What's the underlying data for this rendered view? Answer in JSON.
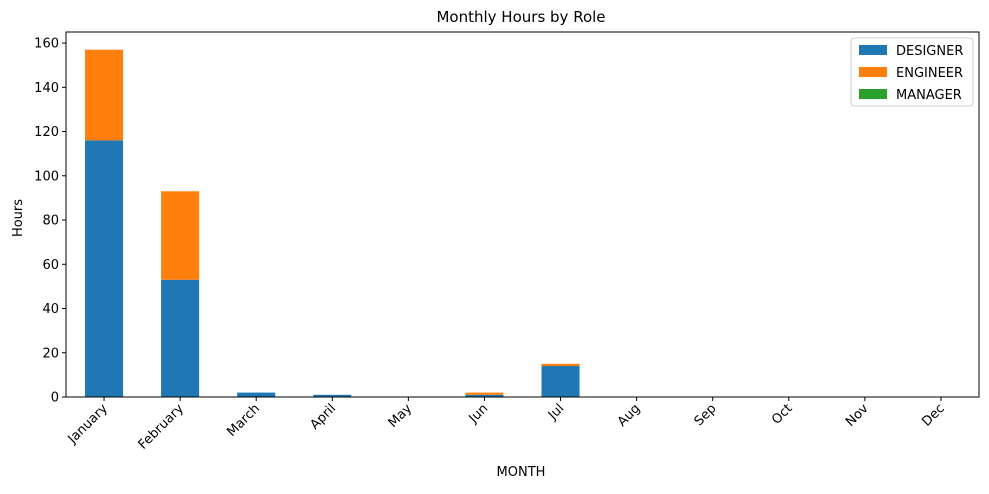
{
  "chart_data": {
    "type": "bar",
    "stacked": true,
    "title": "Monthly Hours by Role",
    "xlabel": "MONTH",
    "ylabel": "Hours",
    "ylim": [
      0,
      165
    ],
    "yticks": [
      0,
      20,
      40,
      60,
      80,
      100,
      120,
      140,
      160
    ],
    "categories": [
      "January",
      "February",
      "March",
      "April",
      "May",
      "Jun",
      "Jul",
      "Aug",
      "Sep",
      "Oct",
      "Nov",
      "Dec"
    ],
    "series": [
      {
        "name": "DESIGNER",
        "color": "#1f77b4",
        "values": [
          116,
          53,
          2,
          1,
          0,
          1,
          14,
          0,
          0,
          0,
          0,
          0
        ]
      },
      {
        "name": "ENGINEER",
        "color": "#ff7f0e",
        "values": [
          41,
          40,
          0,
          0,
          0,
          1,
          1,
          0,
          0,
          0,
          0,
          0
        ]
      },
      {
        "name": "MANAGER",
        "color": "#2ca02c",
        "values": [
          0,
          0,
          0,
          0,
          0,
          0,
          0,
          0,
          0,
          0,
          0,
          0
        ]
      }
    ],
    "legend_position": "top-right",
    "grid": false
  }
}
